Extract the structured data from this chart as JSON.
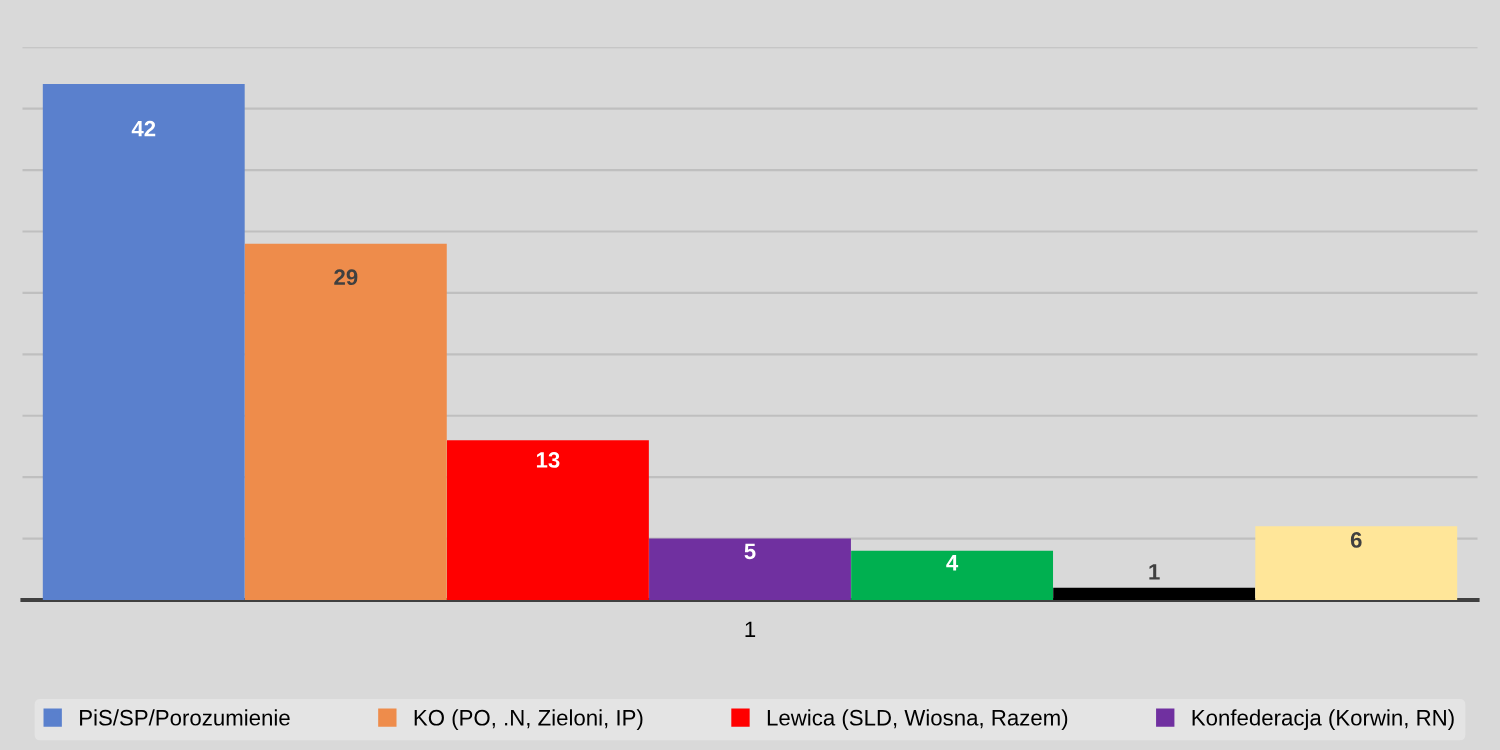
{
  "chart_data": {
    "type": "bar",
    "categories": [
      null,
      null,
      null,
      null,
      null,
      null,
      null
    ],
    "xlabel": "1",
    "values": [
      42,
      29,
      13,
      5,
      4,
      1,
      6
    ],
    "colors": [
      "#5a80cd",
      "#ee8c4b",
      "#ff0000",
      "#7030a0",
      "#00b050",
      "#000000",
      "#ffe699"
    ],
    "annotations": [
      "PiS/SP/Porozumienie",
      "KO (PO, .N, Zieloni, IP)",
      "Lewica (SLD, Wiosna, Razem)",
      "Konfederacja (Korwin, RN)"
    ],
    "ylim": [
      0,
      45
    ],
    "yticks": [
      {
        "value": 0,
        "label": null
      },
      {
        "value": 5,
        "label": null
      },
      {
        "value": 10,
        "label": null
      },
      {
        "value": 15,
        "label": null
      },
      {
        "value": 20,
        "label": null
      },
      {
        "value": 25,
        "label": null
      },
      {
        "value": 30,
        "label": null
      },
      {
        "value": 35,
        "label": null
      },
      {
        "value": 40,
        "label": null
      },
      {
        "value": 45,
        "label": null
      }
    ],
    "grid": "y",
    "data_labels": true
  }
}
